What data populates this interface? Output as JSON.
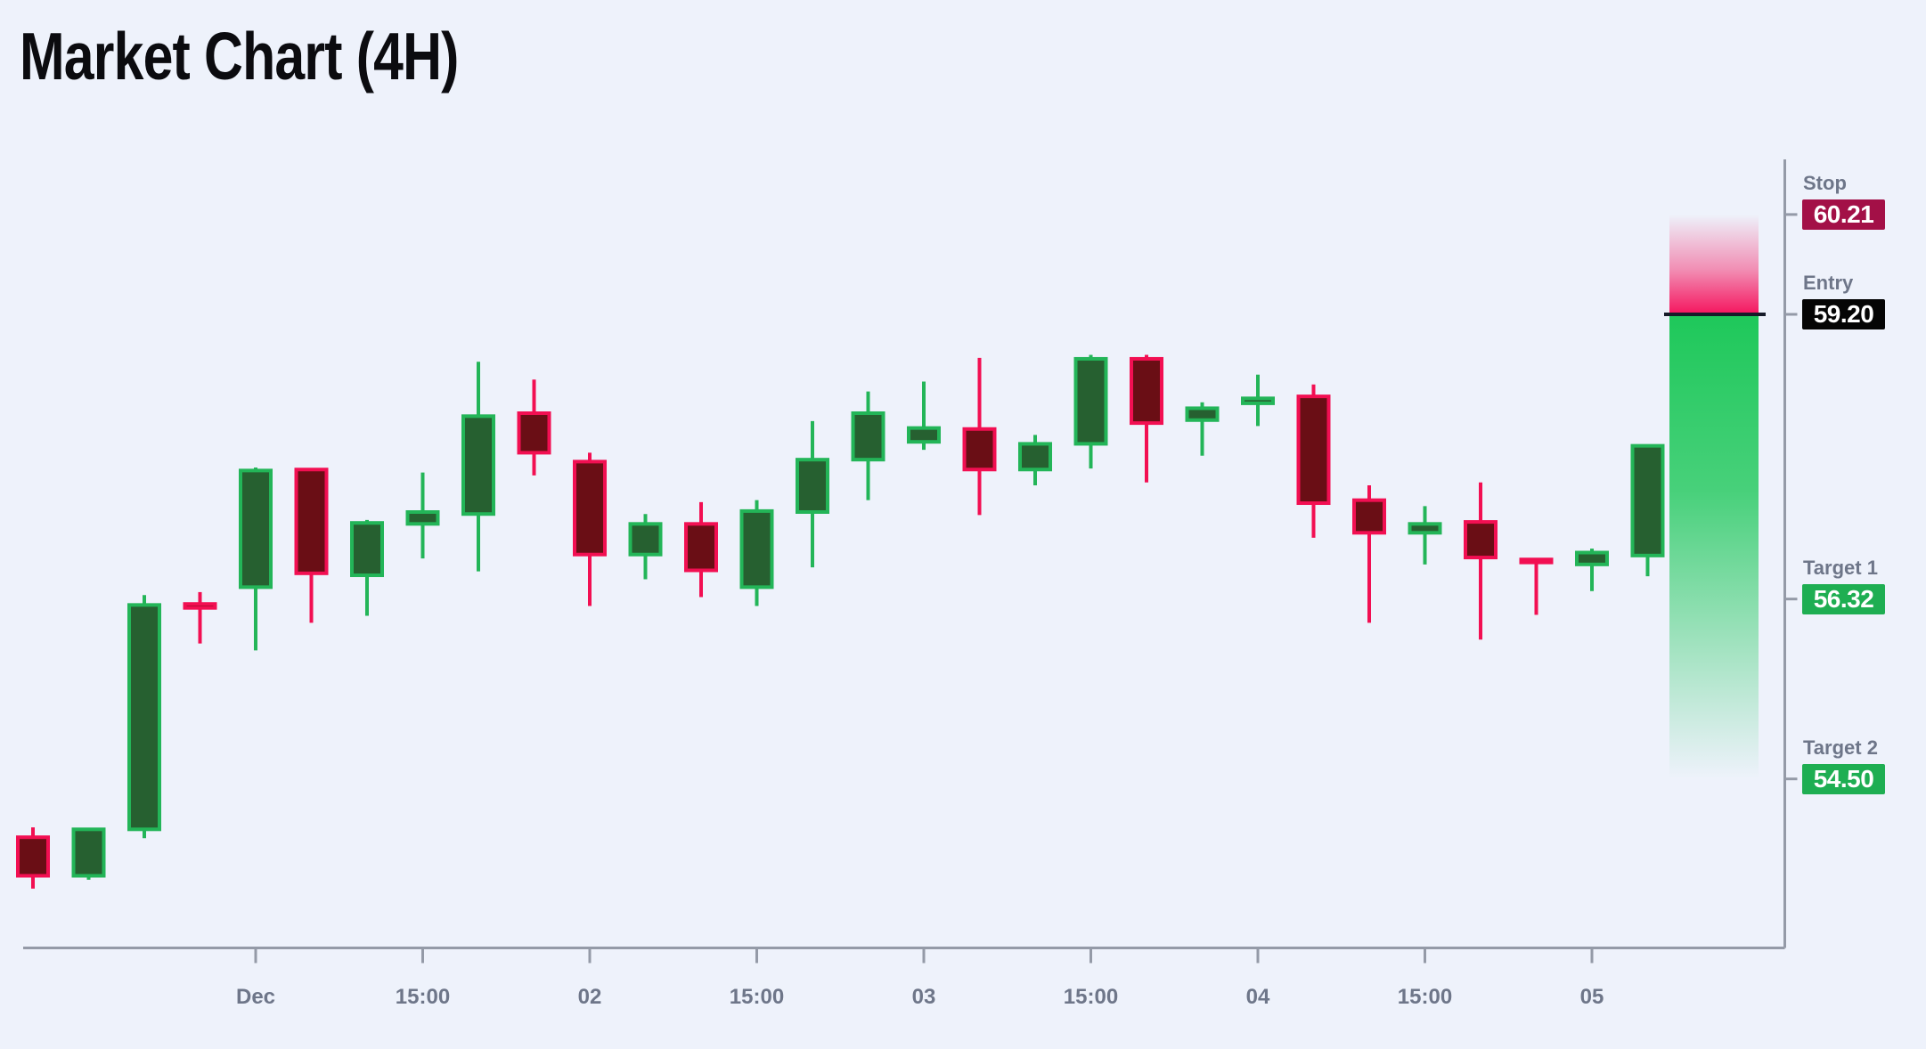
{
  "title": "Market Chart (4H)",
  "colors": {
    "background": "#eef2fb",
    "bull_fill": "#266030",
    "bull_stroke": "#23b558",
    "bear_fill": "#6a0e15",
    "bear_stroke": "#f20f52",
    "axis": "#949aa7",
    "tick_label": "#6e7689",
    "level_label": "#6e7689",
    "badge_text": "#ffffff",
    "entry_line": "#161b29",
    "risk_color": "#f5155e",
    "reward_color": "#1ec85a",
    "stop_badge": "#a31047",
    "entry_badge": "#050505",
    "target_badge": "#1eae52"
  },
  "chart_data": {
    "type": "candlestick",
    "title": "Market Chart (4H)",
    "timeframe": "4H",
    "legend_position": "right",
    "grid": false,
    "y_range": [
      53.2,
      60.9
    ],
    "x_tick_labels": [
      "Dec",
      "15:00",
      "02",
      "15:00",
      "03",
      "15:00",
      "04",
      "15:00",
      "05"
    ],
    "x_tick_candle_indices": [
      4,
      7,
      10,
      13,
      16,
      19,
      22,
      25,
      28
    ],
    "candles": [
      {
        "o": 53.91,
        "h": 54.01,
        "l": 53.39,
        "c": 53.52
      },
      {
        "o": 53.52,
        "h": 53.99,
        "l": 53.48,
        "c": 53.99
      },
      {
        "o": 53.99,
        "h": 56.36,
        "l": 53.9,
        "c": 56.26
      },
      {
        "o": 56.27,
        "h": 56.39,
        "l": 55.87,
        "c": 56.23
      },
      {
        "o": 56.44,
        "h": 57.65,
        "l": 55.8,
        "c": 57.62
      },
      {
        "o": 57.63,
        "h": 57.63,
        "l": 56.08,
        "c": 56.58
      },
      {
        "o": 56.56,
        "h": 57.12,
        "l": 56.15,
        "c": 57.09
      },
      {
        "o": 57.08,
        "h": 57.6,
        "l": 56.73,
        "c": 57.2
      },
      {
        "o": 57.18,
        "h": 58.72,
        "l": 56.6,
        "c": 58.17
      },
      {
        "o": 58.2,
        "h": 58.54,
        "l": 57.57,
        "c": 57.8
      },
      {
        "o": 57.71,
        "h": 57.8,
        "l": 56.25,
        "c": 56.77
      },
      {
        "o": 56.77,
        "h": 57.18,
        "l": 56.52,
        "c": 57.08
      },
      {
        "o": 57.08,
        "h": 57.3,
        "l": 56.34,
        "c": 56.61
      },
      {
        "o": 56.44,
        "h": 57.32,
        "l": 56.25,
        "c": 57.21
      },
      {
        "o": 57.2,
        "h": 58.12,
        "l": 56.64,
        "c": 57.73
      },
      {
        "o": 57.73,
        "h": 58.42,
        "l": 57.32,
        "c": 58.2
      },
      {
        "o": 57.91,
        "h": 58.52,
        "l": 57.83,
        "c": 58.05
      },
      {
        "o": 58.04,
        "h": 58.76,
        "l": 57.17,
        "c": 57.63
      },
      {
        "o": 57.63,
        "h": 57.98,
        "l": 57.47,
        "c": 57.89
      },
      {
        "o": 57.89,
        "h": 58.79,
        "l": 57.64,
        "c": 58.75
      },
      {
        "o": 58.75,
        "h": 58.79,
        "l": 57.5,
        "c": 58.1
      },
      {
        "o": 58.13,
        "h": 58.31,
        "l": 57.77,
        "c": 58.25
      },
      {
        "o": 58.3,
        "h": 58.59,
        "l": 58.07,
        "c": 58.35
      },
      {
        "o": 58.37,
        "h": 58.49,
        "l": 56.94,
        "c": 57.29
      },
      {
        "o": 57.32,
        "h": 57.47,
        "l": 56.08,
        "c": 56.99
      },
      {
        "o": 56.99,
        "h": 57.26,
        "l": 56.67,
        "c": 57.08
      },
      {
        "o": 57.1,
        "h": 57.5,
        "l": 55.91,
        "c": 56.74
      },
      {
        "o": 56.72,
        "h": 56.72,
        "l": 56.16,
        "c": 56.69
      },
      {
        "o": 56.67,
        "h": 56.83,
        "l": 56.4,
        "c": 56.79
      },
      {
        "o": 56.76,
        "h": 57.87,
        "l": 56.55,
        "c": 57.87
      }
    ],
    "levels": [
      {
        "id": "stop",
        "label": "Stop",
        "value": "60.21",
        "price": 60.21
      },
      {
        "id": "entry",
        "label": "Entry",
        "value": "59.20",
        "price": 59.2
      },
      {
        "id": "target1",
        "label": "Target 1",
        "value": "56.32",
        "price": 56.32
      },
      {
        "id": "target2",
        "label": "Target 2",
        "value": "54.50",
        "price": 54.5
      }
    ],
    "zones": [
      {
        "kind": "risk",
        "from_price": 60.21,
        "to_price": 59.2
      },
      {
        "kind": "reward",
        "from_price": 59.2,
        "to_price": 54.5
      }
    ]
  }
}
